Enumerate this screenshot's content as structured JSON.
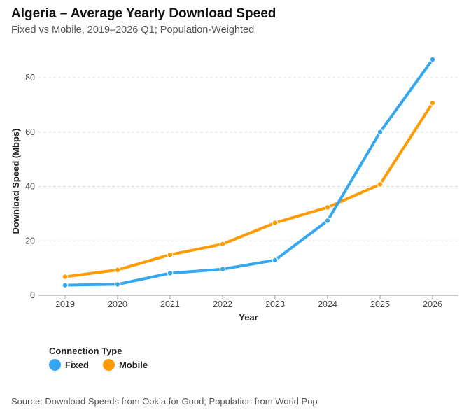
{
  "chart_data": {
    "type": "line",
    "title": "Algeria – Average Yearly Download Speed",
    "subtitle": "Fixed vs Mobile, 2019–2026 Q1; Population-Weighted",
    "xlabel": "Year",
    "ylabel": "Download Speed (Mbps)",
    "categories": [
      "2019",
      "2020",
      "2021",
      "2022",
      "2023",
      "2024",
      "2025",
      "2026"
    ],
    "ylim": [
      0,
      90
    ],
    "yticks": [
      0,
      20,
      40,
      60,
      80
    ],
    "grid": true,
    "series": [
      {
        "name": "Fixed",
        "color": "#35A7F0",
        "values": [
          3.7,
          4.0,
          8.1,
          9.6,
          12.9,
          27.4,
          60.0,
          86.7
        ]
      },
      {
        "name": "Mobile",
        "color": "#FF9A00",
        "values": [
          6.8,
          9.3,
          14.9,
          18.8,
          26.6,
          32.3,
          40.8,
          70.7
        ]
      }
    ],
    "legend": {
      "title": "Connection Type",
      "placement": "bottom-left"
    },
    "source": "Source: Download Speeds from Ookla for Good; Population from World Pop"
  }
}
